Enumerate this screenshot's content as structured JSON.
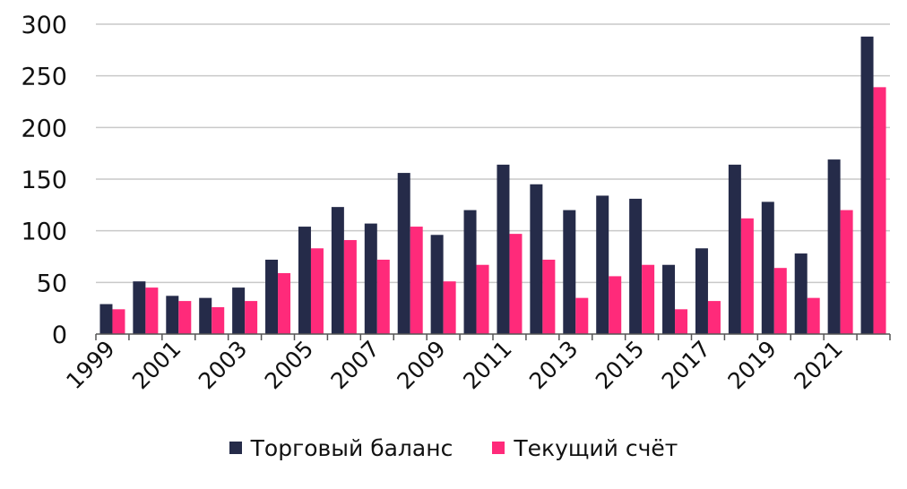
{
  "chart_data": {
    "type": "bar",
    "categories": [
      "1999",
      "2000",
      "2001",
      "2002",
      "2003",
      "2004",
      "2005",
      "2006",
      "2007",
      "2008",
      "2009",
      "2010",
      "2011",
      "2012",
      "2013",
      "2014",
      "2015",
      "2016",
      "2017",
      "2018",
      "2019",
      "2020",
      "2021",
      "2022"
    ],
    "tick_labels": [
      "1999",
      "",
      "2001",
      "",
      "2003",
      "",
      "2005",
      "",
      "2007",
      "",
      "2009",
      "",
      "2011",
      "",
      "2013",
      "",
      "2015",
      "",
      "2017",
      "",
      "2019",
      "",
      "2021",
      ""
    ],
    "series": [
      {
        "name": "Торговый баланс",
        "color": "#252b49",
        "values": [
          29,
          51,
          37,
          35,
          45,
          72,
          104,
          123,
          107,
          156,
          96,
          120,
          164,
          145,
          120,
          134,
          131,
          67,
          83,
          164,
          128,
          78,
          169,
          288
        ]
      },
      {
        "name": "Текущий счёт",
        "color": "#ff2a7a",
        "values": [
          24,
          45,
          32,
          26,
          32,
          59,
          83,
          91,
          72,
          104,
          51,
          67,
          97,
          72,
          35,
          56,
          67,
          24,
          32,
          112,
          64,
          35,
          120,
          239
        ]
      }
    ],
    "yticks": [
      0,
      50,
      100,
      150,
      200,
      250,
      300
    ],
    "ylim": [
      0,
      300
    ],
    "grid": true,
    "legend_position": "bottom"
  }
}
